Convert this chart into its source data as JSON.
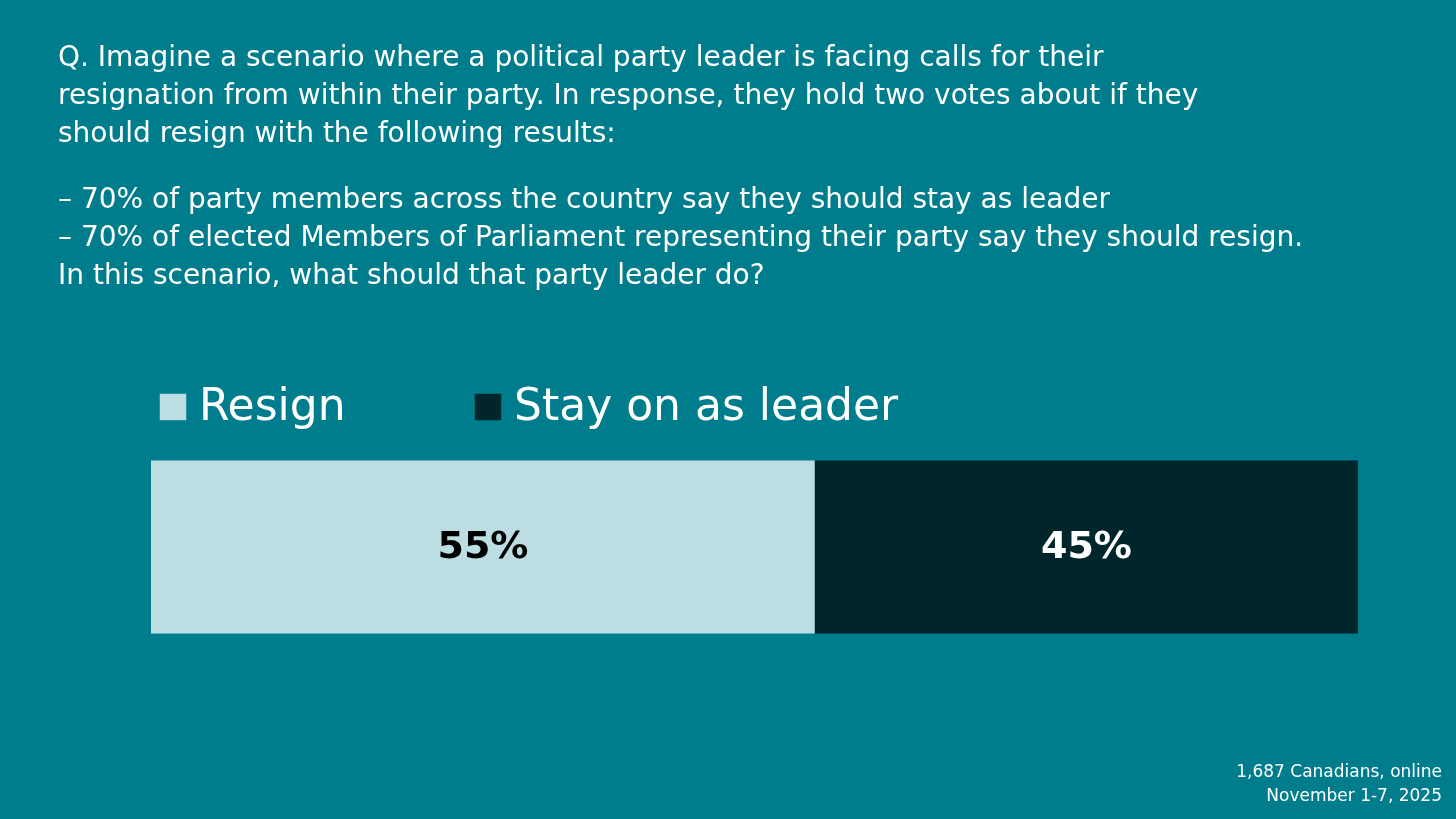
{
  "chart_data": {
    "type": "bar",
    "orientation": "horizontal",
    "stacked": true,
    "legend": "top",
    "title": "Q. Imagine a scenario where a political party leader is facing calls for their resignation from within their party. In response, they hold two votes about if they should resign with the following results:",
    "subtitle": "– 70% of party members across the country say they should stay as leader\n– 70% of elected Members of Parliament representing their party say they should resign.\nIn this scenario, what should that party leader do?",
    "categories": [
      null
    ],
    "series": [
      {
        "name": "Resign",
        "color": "#bcdee2",
        "values": [
          55
        ],
        "value_labels": [
          "55%"
        ]
      },
      {
        "name": "Stay on as leader",
        "color": "#00252b",
        "values": [
          45
        ],
        "value_labels": [
          "45%"
        ]
      }
    ],
    "annotations": [
      "1,687 Canadians, online",
      "November 1-7, 2025"
    ]
  }
}
